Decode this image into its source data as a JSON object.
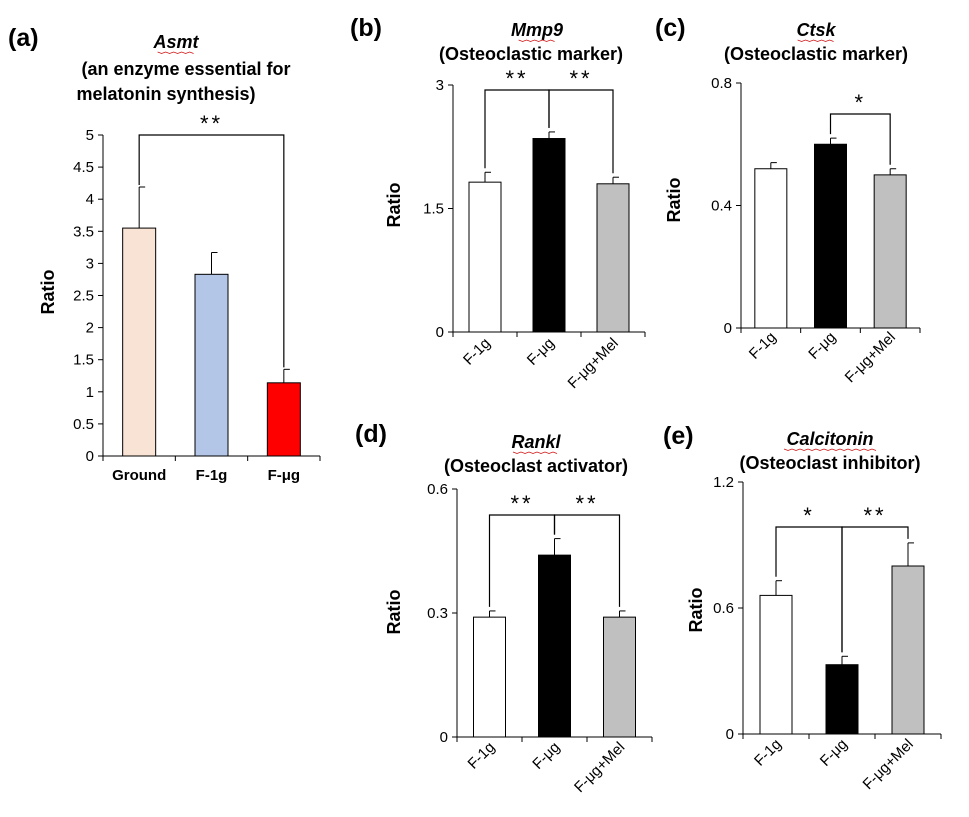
{
  "chart_data": [
    {
      "type": "bar",
      "panel_label": "(a)",
      "title": "Asmt",
      "subtitle": [
        "(an enzyme essential for",
        "melatonin synthesis)"
      ],
      "ylabel": "Ratio",
      "ylim": [
        0,
        5
      ],
      "yticks": [
        "0",
        "0.5",
        "1",
        "1.5",
        "2",
        "2.5",
        "3",
        "3.5",
        "4",
        "4.5",
        "5"
      ],
      "categories": [
        "Ground",
        "F-1g",
        "F-μg"
      ],
      "values": [
        3.55,
        2.83,
        1.14
      ],
      "errors": [
        0.64,
        0.34,
        0.21
      ],
      "colors": [
        "#f8e3d4",
        "#b3c6e8",
        "#ff0000"
      ],
      "significance": [
        {
          "from": 0,
          "to": 2,
          "label": "**"
        }
      ]
    },
    {
      "type": "bar",
      "panel_label": "(b)",
      "title": "Mmp9",
      "subtitle": [
        "(Osteoclastic marker)"
      ],
      "ylabel": "Ratio",
      "ylim": [
        0,
        3
      ],
      "yticks": [
        "0",
        "1.5",
        "3"
      ],
      "categories": [
        "F-1g",
        "F-μg",
        "F-μg+Mel"
      ],
      "values": [
        1.82,
        2.35,
        1.8
      ],
      "errors": [
        0.12,
        0.08,
        0.08
      ],
      "colors": [
        "#ffffff",
        "#000000",
        "#c0c0c0"
      ],
      "significance": [
        {
          "from": 0,
          "to": 1,
          "label": "**"
        },
        {
          "from": 1,
          "to": 2,
          "label": "**"
        }
      ]
    },
    {
      "type": "bar",
      "panel_label": "(c)",
      "title": "Ctsk",
      "subtitle": [
        "(Osteoclastic marker)"
      ],
      "ylabel": "Ratio",
      "ylim": [
        0,
        0.8
      ],
      "yticks": [
        "0",
        "0.4",
        "0.8"
      ],
      "categories": [
        "F-1g",
        "F-μg",
        "F-μg+Mel"
      ],
      "values": [
        0.52,
        0.6,
        0.5
      ],
      "errors": [
        0.02,
        0.02,
        0.02
      ],
      "colors": [
        "#ffffff",
        "#000000",
        "#c0c0c0"
      ],
      "significance": [
        {
          "from": 1,
          "to": 2,
          "label": "*"
        }
      ]
    },
    {
      "type": "bar",
      "panel_label": "(d)",
      "title": "Rankl",
      "subtitle": [
        "(Osteoclast activator)"
      ],
      "ylabel": "Ratio",
      "ylim": [
        0,
        0.6
      ],
      "yticks": [
        "0",
        "0.3",
        "0.6"
      ],
      "categories": [
        "F-1g",
        "F-μg",
        "F-μg+Mel"
      ],
      "values": [
        0.29,
        0.44,
        0.29
      ],
      "errors": [
        0.015,
        0.04,
        0.015
      ],
      "colors": [
        "#ffffff",
        "#000000",
        "#c0c0c0"
      ],
      "significance": [
        {
          "from": 0,
          "to": 1,
          "label": "**"
        },
        {
          "from": 1,
          "to": 2,
          "label": "**"
        }
      ]
    },
    {
      "type": "bar",
      "panel_label": "(e)",
      "title": "Calcitonin",
      "subtitle": [
        "(Osteoclast inhibitor)"
      ],
      "ylabel": "Ratio",
      "ylim": [
        0,
        1.2
      ],
      "yticks": [
        "0",
        "0.6",
        "1.2"
      ],
      "categories": [
        "F-1g",
        "F-μg",
        "F-μg+Mel"
      ],
      "values": [
        0.66,
        0.33,
        0.8
      ],
      "errors": [
        0.07,
        0.04,
        0.11
      ],
      "colors": [
        "#ffffff",
        "#000000",
        "#c0c0c0"
      ],
      "significance": [
        {
          "from": 0,
          "to": 1,
          "label": "*"
        },
        {
          "from": 1,
          "to": 2,
          "label": "**"
        }
      ]
    }
  ]
}
